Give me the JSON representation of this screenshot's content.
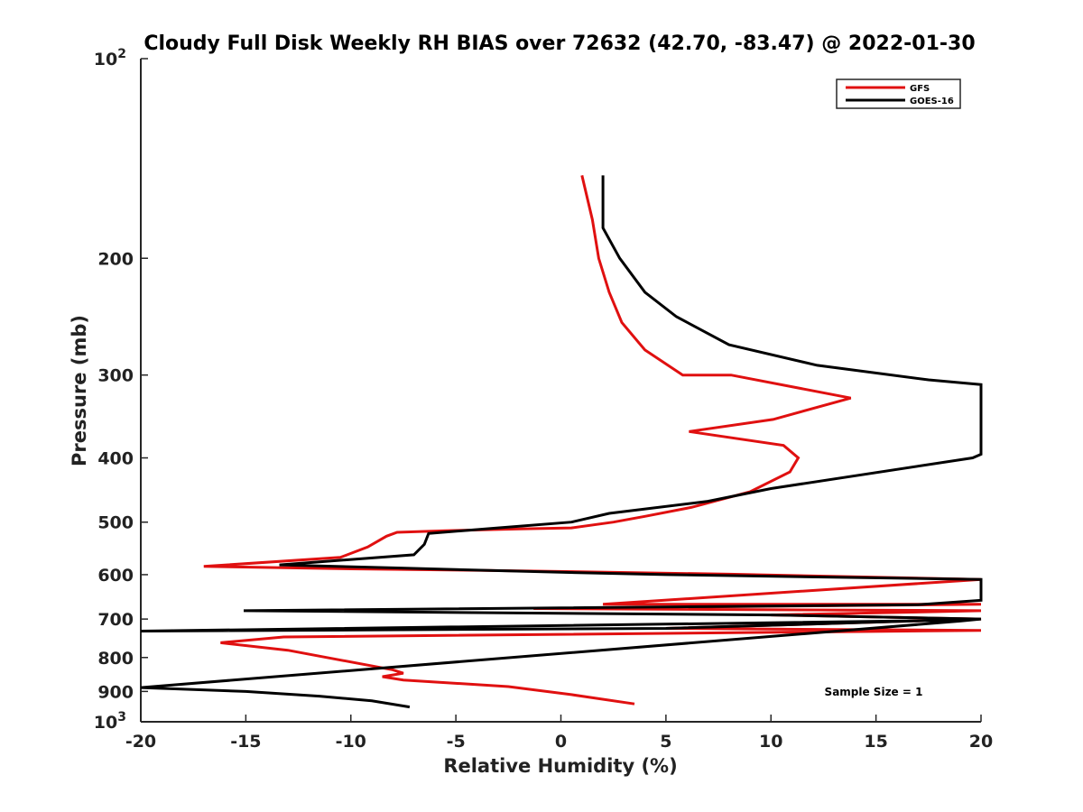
{
  "chart_data": {
    "type": "line",
    "title": "Cloudy Full Disk Weekly RH BIAS over 72632 (42.70, -83.47) @ 2022-01-30",
    "xlabel": "Relative Humidity (%)",
    "ylabel": "Pressure (mb)",
    "xlim": [
      -20,
      20
    ],
    "ylim": [
      100,
      1000
    ],
    "y_scale": "log",
    "y_reversed": true,
    "grid": false,
    "legend_position": "top-right",
    "x_ticks": [
      -20,
      -15,
      -10,
      -5,
      0,
      5,
      10,
      15,
      20
    ],
    "x_tick_labels": [
      "-20",
      "-15",
      "-10",
      "-5",
      "0",
      "5",
      "10",
      "15",
      "20"
    ],
    "y_ticks": [
      100,
      200,
      300,
      400,
      500,
      600,
      700,
      800,
      900,
      1000
    ],
    "y_tick_labels": [
      {
        "base": "10",
        "exp": "2"
      },
      {
        "base": "200",
        "exp": ""
      },
      {
        "base": "300",
        "exp": ""
      },
      {
        "base": "400",
        "exp": ""
      },
      {
        "base": "500",
        "exp": ""
      },
      {
        "base": "600",
        "exp": ""
      },
      {
        "base": "700",
        "exp": ""
      },
      {
        "base": "800",
        "exp": ""
      },
      {
        "base": "900",
        "exp": ""
      },
      {
        "base": "10",
        "exp": "3"
      }
    ],
    "annotation": "Sample Size = 1",
    "series": [
      {
        "name": "GFS",
        "color": "#e01010",
        "points": [
          [
            1.0,
            150
          ],
          [
            1.5,
            175
          ],
          [
            1.8,
            200
          ],
          [
            2.3,
            225
          ],
          [
            2.9,
            250
          ],
          [
            4.0,
            275
          ],
          [
            5.8,
            300
          ],
          [
            8.1,
            300
          ],
          [
            13.8,
            325
          ],
          [
            10.1,
            350
          ],
          [
            6.1,
            365
          ],
          [
            10.6,
            383
          ],
          [
            11.3,
            400
          ],
          [
            10.9,
            420
          ],
          [
            9.0,
            450
          ],
          [
            6.2,
            475
          ],
          [
            4.0,
            490
          ],
          [
            2.5,
            500
          ],
          [
            0.5,
            510
          ],
          [
            -2.0,
            512
          ],
          [
            -5.5,
            515
          ],
          [
            -7.8,
            518
          ],
          [
            -8.3,
            525
          ],
          [
            -9.2,
            545
          ],
          [
            -10.5,
            565
          ],
          [
            -17.0,
            583
          ],
          [
            -10.0,
            588
          ],
          [
            -2.0,
            592
          ],
          [
            8.0,
            599
          ],
          [
            20.0,
            610
          ],
          [
            2.0,
            665
          ],
          [
            20.0,
            665
          ],
          [
            -1.3,
            675
          ],
          [
            20.0,
            680
          ],
          [
            10.0,
            690
          ],
          [
            20.0,
            700
          ],
          [
            5.0,
            723
          ],
          [
            20.0,
            728
          ],
          [
            -13.2,
            745
          ],
          [
            -16.2,
            760
          ],
          [
            -13.0,
            780
          ],
          [
            -8.0,
            835
          ],
          [
            -7.5,
            845
          ],
          [
            -8.5,
            855
          ],
          [
            -7.5,
            865
          ],
          [
            -2.5,
            885
          ],
          [
            0.5,
            910
          ],
          [
            3.5,
            940
          ]
        ]
      },
      {
        "name": "GOES-16",
        "color": "#000000",
        "points": [
          [
            2.0,
            150
          ],
          [
            2.0,
            180
          ],
          [
            2.8,
            200
          ],
          [
            4.0,
            225
          ],
          [
            5.5,
            245
          ],
          [
            8.0,
            270
          ],
          [
            12.2,
            290
          ],
          [
            17.5,
            305
          ],
          [
            20.0,
            310
          ],
          [
            20.0,
            395
          ],
          [
            19.6,
            400
          ],
          [
            10.0,
            445
          ],
          [
            7.0,
            465
          ],
          [
            2.3,
            485
          ],
          [
            0.5,
            500
          ],
          [
            -3.0,
            510
          ],
          [
            -6.3,
            520
          ],
          [
            -6.5,
            540
          ],
          [
            -7.0,
            560
          ],
          [
            -13.4,
            580
          ],
          [
            -8.0,
            586
          ],
          [
            0.0,
            595
          ],
          [
            5.0,
            600
          ],
          [
            20.0,
            610
          ],
          [
            20.0,
            656
          ],
          [
            17.0,
            666
          ],
          [
            -15.1,
            680
          ],
          [
            10.0,
            690
          ],
          [
            20.0,
            700
          ],
          [
            18.8,
            703
          ],
          [
            -20.0,
            730
          ],
          [
            5.0,
            723
          ],
          [
            20.0,
            700
          ],
          [
            19.0,
            705
          ],
          [
            -20.0,
            888
          ],
          [
            -15.0,
            900
          ],
          [
            -11.5,
            915
          ],
          [
            -9.0,
            930
          ],
          [
            -7.2,
            950
          ]
        ]
      }
    ]
  }
}
